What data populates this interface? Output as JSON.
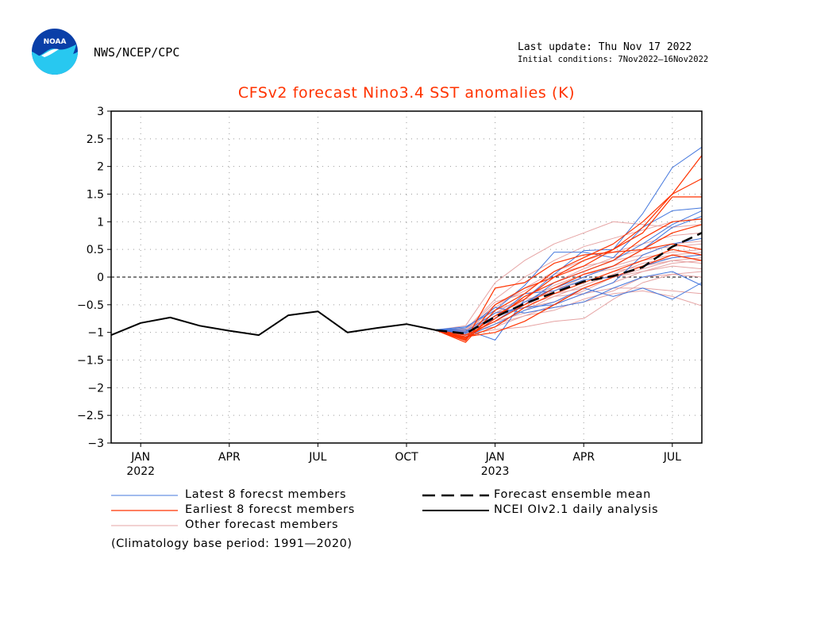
{
  "header": {
    "agency": "NWS/NCEP/CPC",
    "last_update": "Last update: Thu Nov 17 2022",
    "initial_conditions": "Initial conditions: 7Nov2022—16Nov2022",
    "logo_text": "NOAA"
  },
  "legend": {
    "latest": "Latest 8 forecst members",
    "earliest": "Earliest 8 forecst members",
    "other": "Other forecast members",
    "mean": "Forecast ensemble mean",
    "analysis": "NCEI OIv2.1 daily analysis"
  },
  "footnote": "(Climatology base period: 1991—2020)",
  "colors": {
    "latest": "#4477dd",
    "earliest": "#ff3300",
    "other": "#e6a4a4",
    "mean": "#000000",
    "analysis": "#000000",
    "title": "#ff3300"
  },
  "chart_data": {
    "type": "line",
    "title": "CFSv2 forecast Nino3.4 SST anomalies (K)",
    "ylim": [
      -3,
      3
    ],
    "yticks": [
      "3",
      "2.5",
      "2",
      "1.5",
      "1",
      "0.5",
      "0",
      "−0.5",
      "−1",
      "−1.5",
      "−2",
      "−2.5",
      "−3"
    ],
    "xlim": [
      "2021-12",
      "2023-08"
    ],
    "xticks": [
      {
        "month": "2022-01",
        "label": "JAN",
        "year": "2022"
      },
      {
        "month": "2022-04",
        "label": "APR",
        "year": ""
      },
      {
        "month": "2022-07",
        "label": "JUL",
        "year": ""
      },
      {
        "month": "2022-10",
        "label": "OCT",
        "year": ""
      },
      {
        "month": "2023-01",
        "label": "JAN",
        "year": "2023"
      },
      {
        "month": "2023-04",
        "label": "APR",
        "year": ""
      },
      {
        "month": "2023-07",
        "label": "JUL",
        "year": ""
      }
    ],
    "grid": true,
    "zero_line": true,
    "analysis": {
      "name": "NCEI OIv2.1 daily analysis",
      "points": [
        [
          "2021-12",
          -1.05
        ],
        [
          "2022-01",
          -0.83
        ],
        [
          "2022-02",
          -0.73
        ],
        [
          "2022-03",
          -0.88
        ],
        [
          "2022-04",
          -0.97
        ],
        [
          "2022-05",
          -1.05
        ],
        [
          "2022-06",
          -0.69
        ],
        [
          "2022-07",
          -0.62
        ],
        [
          "2022-08",
          -1.0
        ],
        [
          "2022-09",
          -0.92
        ],
        [
          "2022-10",
          -0.85
        ],
        [
          "2022-11",
          -0.96
        ]
      ]
    },
    "forecast_months": [
      "2022-11",
      "2022-12",
      "2023-01",
      "2023-02",
      "2023-03",
      "2023-04",
      "2023-05",
      "2023-06",
      "2023-07",
      "2023-08"
    ],
    "ensemble_mean": {
      "name": "Forecast ensemble mean",
      "values": [
        -0.96,
        -1.02,
        -0.72,
        -0.48,
        -0.28,
        -0.08,
        0.02,
        0.18,
        0.55,
        0.8
      ]
    },
    "latest_members": {
      "name": "Latest 8 forecst members",
      "values": [
        [
          -0.96,
          -0.95,
          -1.14,
          -0.4,
          0.05,
          0.48,
          0.5,
          1.15,
          1.98,
          2.35
        ],
        [
          -0.95,
          -0.9,
          -0.6,
          -0.15,
          0.45,
          0.45,
          0.35,
          0.9,
          1.2,
          1.25
        ],
        [
          -0.96,
          -1.0,
          -0.7,
          -0.5,
          -0.1,
          0.1,
          0.3,
          0.6,
          0.95,
          1.2
        ],
        [
          -0.96,
          -1.05,
          -0.8,
          -0.45,
          -0.2,
          0.0,
          0.2,
          0.5,
          0.9,
          1.1
        ],
        [
          -0.96,
          -0.98,
          -0.65,
          -0.55,
          -0.5,
          -0.3,
          -0.1,
          0.4,
          0.6,
          0.7
        ],
        [
          -0.96,
          -1.02,
          -0.75,
          -0.3,
          -0.25,
          -0.05,
          0.0,
          0.2,
          0.35,
          0.4
        ],
        [
          -0.96,
          -0.92,
          -0.55,
          -0.65,
          -0.55,
          -0.45,
          -0.2,
          0.0,
          0.1,
          -0.15
        ],
        [
          -0.96,
          -1.08,
          -0.85,
          -0.6,
          -0.45,
          -0.2,
          -0.35,
          -0.2,
          -0.4,
          -0.1
        ]
      ]
    },
    "earliest_members": {
      "name": "Earliest 8 forecst members",
      "values": [
        [
          -0.96,
          -1.15,
          -0.5,
          -0.2,
          0.0,
          0.2,
          0.5,
          0.9,
          1.5,
          2.2
        ],
        [
          -0.96,
          -1.18,
          -0.6,
          -0.3,
          0.1,
          0.35,
          0.6,
          1.0,
          1.5,
          1.78
        ],
        [
          -0.96,
          -1.1,
          -0.7,
          -0.4,
          0.0,
          0.3,
          0.5,
          0.8,
          1.45,
          1.45
        ],
        [
          -0.96,
          -1.12,
          -0.75,
          -0.35,
          -0.1,
          0.1,
          0.3,
          0.7,
          1.0,
          1.05
        ],
        [
          -0.96,
          -1.05,
          -0.8,
          -0.5,
          -0.2,
          0.05,
          0.2,
          0.5,
          0.8,
          0.95
        ],
        [
          -0.96,
          -1.14,
          -0.2,
          -0.1,
          0.25,
          0.4,
          0.45,
          0.5,
          0.6,
          0.5
        ],
        [
          -0.96,
          -1.08,
          -1.0,
          -0.8,
          -0.5,
          -0.2,
          0.0,
          0.2,
          0.4,
          0.3
        ],
        [
          -0.96,
          -1.1,
          -0.9,
          -0.55,
          -0.3,
          -0.1,
          0.1,
          0.3,
          0.5,
          0.4
        ]
      ]
    },
    "other_members": {
      "name": "Other forecast members",
      "values": [
        [
          -0.96,
          -0.88,
          -0.1,
          0.3,
          0.6,
          0.8,
          1.0,
          0.95,
          0.9,
          0.95
        ],
        [
          -0.96,
          -0.95,
          -0.4,
          0.0,
          0.3,
          0.55,
          0.7,
          0.85,
          1.0,
          1.05
        ],
        [
          -0.96,
          -1.0,
          -0.55,
          -0.2,
          0.1,
          0.3,
          0.45,
          0.6,
          0.75,
          0.8
        ],
        [
          -0.96,
          -0.97,
          -0.65,
          -0.35,
          -0.1,
          0.15,
          0.35,
          0.5,
          0.55,
          0.6
        ],
        [
          -0.96,
          -1.02,
          -0.75,
          -0.45,
          -0.25,
          0.0,
          0.2,
          0.35,
          0.45,
          0.5
        ],
        [
          -0.96,
          -1.05,
          -0.85,
          -0.6,
          -0.35,
          -0.15,
          0.05,
          0.25,
          0.35,
          0.4
        ],
        [
          -0.96,
          -0.99,
          -0.9,
          -0.7,
          -0.5,
          -0.3,
          -0.1,
          0.1,
          0.25,
          0.3
        ],
        [
          -0.96,
          -1.03,
          -0.95,
          -0.9,
          -0.8,
          -0.75,
          -0.4,
          -0.1,
          0.05,
          0.1
        ],
        [
          -0.96,
          -1.0,
          -0.7,
          -0.5,
          -0.35,
          -0.3,
          -0.2,
          -0.2,
          -0.25,
          -0.3
        ],
        [
          -0.96,
          -1.08,
          -0.8,
          -0.65,
          -0.55,
          -0.45,
          -0.3,
          -0.25,
          -0.35,
          -0.52
        ],
        [
          -0.96,
          -0.94,
          -0.6,
          -0.4,
          -0.3,
          -0.2,
          0.0,
          0.1,
          0.2,
          0.15
        ],
        [
          -0.96,
          -1.06,
          -0.85,
          -0.7,
          -0.6,
          -0.4,
          -0.25,
          0.0,
          0.05,
          0.0
        ],
        [
          -0.96,
          -0.98,
          -0.5,
          -0.25,
          0.05,
          0.2,
          0.3,
          0.4,
          0.6,
          0.65
        ],
        [
          -0.96,
          -1.01,
          -0.65,
          -0.45,
          -0.15,
          0.05,
          0.15,
          0.3,
          0.4,
          0.45
        ],
        [
          -0.96,
          -0.96,
          -0.45,
          -0.3,
          -0.2,
          -0.1,
          0.1,
          0.2,
          0.3,
          0.25
        ],
        [
          -0.96,
          -1.04,
          -0.7,
          -0.55,
          -0.45,
          -0.25,
          0.0,
          0.15,
          0.3,
          0.35
        ]
      ]
    }
  }
}
